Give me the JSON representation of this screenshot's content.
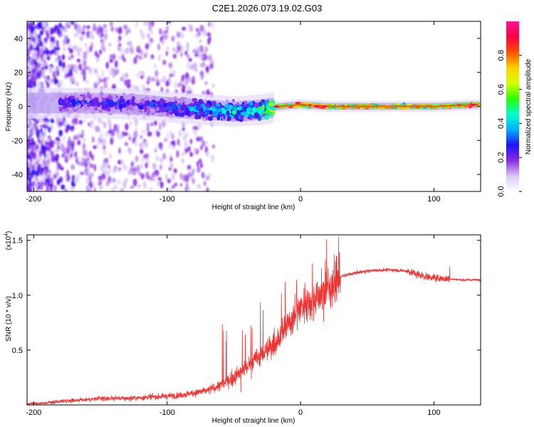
{
  "title": "C2E1.2026.073.19.02.G03",
  "chart_data": [
    {
      "type": "heatmap",
      "name": "spectrogram",
      "xlabel": "Height of straight line (km)",
      "ylabel": "Frequency (Hz)",
      "xlim": [
        -205,
        135
      ],
      "ylim": [
        -50,
        50
      ],
      "xticks": [
        -200,
        -100,
        0,
        100
      ],
      "xtick_labels": [
        "-200",
        "-100",
        "0",
        "100"
      ],
      "yticks": [
        -40,
        -20,
        0,
        20,
        40
      ],
      "ytick_labels": [
        "-40",
        "-20",
        "0",
        "20",
        "40"
      ],
      "colorbar": {
        "label": "Normalized spectral amplitude",
        "range": [
          0.0,
          1.0
        ],
        "ticks": [
          0.0,
          0.2,
          0.4,
          0.6,
          0.8
        ],
        "tick_labels": [
          "0.0",
          "0.2",
          "0.4",
          "0.6",
          "0.8"
        ],
        "colormap": [
          "#ffffff",
          "#d9c8f5",
          "#8a2be2",
          "#1e10ff",
          "#00b0ff",
          "#00ffcc",
          "#2cff00",
          "#d4ff00",
          "#ffd000",
          "#ff5000",
          "#ff0040",
          "#ff1493"
        ]
      },
      "ridge": {
        "description": "dominant frequency ridge near 0 Hz",
        "points": [
          {
            "x": -180,
            "y": 2,
            "amp": 0.3
          },
          {
            "x": -150,
            "y": 2,
            "amp": 0.3
          },
          {
            "x": -120,
            "y": 1,
            "amp": 0.3
          },
          {
            "x": -90,
            "y": -1,
            "amp": 0.35
          },
          {
            "x": -70,
            "y": -2,
            "amp": 0.4
          },
          {
            "x": -50,
            "y": -3,
            "amp": 0.45
          },
          {
            "x": -30,
            "y": -2,
            "amp": 0.5
          },
          {
            "x": -15,
            "y": 0,
            "amp": 0.8
          },
          {
            "x": 0,
            "y": 1,
            "amp": 0.85
          },
          {
            "x": 20,
            "y": 0,
            "amp": 0.8
          },
          {
            "x": 60,
            "y": 0,
            "amp": 0.75
          },
          {
            "x": 100,
            "y": 0,
            "amp": 0.75
          },
          {
            "x": 135,
            "y": 1,
            "amp": 0.9
          }
        ]
      }
    },
    {
      "type": "line",
      "name": "snr",
      "xlabel": "Height of straight line (km)",
      "ylabel": "SNR (10 * v/v)",
      "y_multiplier_label": "(x10",
      "y_multiplier_exp": "4",
      "y_multiplier_close": ")",
      "xlim": [
        -205,
        135
      ],
      "ylim": [
        0,
        1.55
      ],
      "xticks": [
        -200,
        -100,
        0,
        100
      ],
      "xtick_labels": [
        "-200",
        "-100",
        "0",
        "100"
      ],
      "yticks": [
        0.5,
        1.0,
        1.5
      ],
      "ytick_labels": [
        "0.5",
        "1.0",
        "1.5"
      ],
      "color": "#ee3333",
      "series": [
        {
          "name": "SNR",
          "x": [
            -205,
            -190,
            -175,
            -160,
            -145,
            -130,
            -115,
            -100,
            -90,
            -80,
            -70,
            -60,
            -50,
            -40,
            -30,
            -20,
            -10,
            0,
            10,
            20,
            30,
            40,
            50,
            60,
            70,
            80,
            90,
            100,
            105,
            110,
            120,
            135
          ],
          "y": [
            0.01,
            0.02,
            0.04,
            0.05,
            0.06,
            0.06,
            0.07,
            0.08,
            0.09,
            0.11,
            0.13,
            0.18,
            0.25,
            0.35,
            0.45,
            0.55,
            0.72,
            0.9,
            0.96,
            1.06,
            1.17,
            1.2,
            1.22,
            1.23,
            1.23,
            1.22,
            1.18,
            1.16,
            1.15,
            1.15,
            1.14,
            1.14
          ]
        }
      ]
    }
  ]
}
